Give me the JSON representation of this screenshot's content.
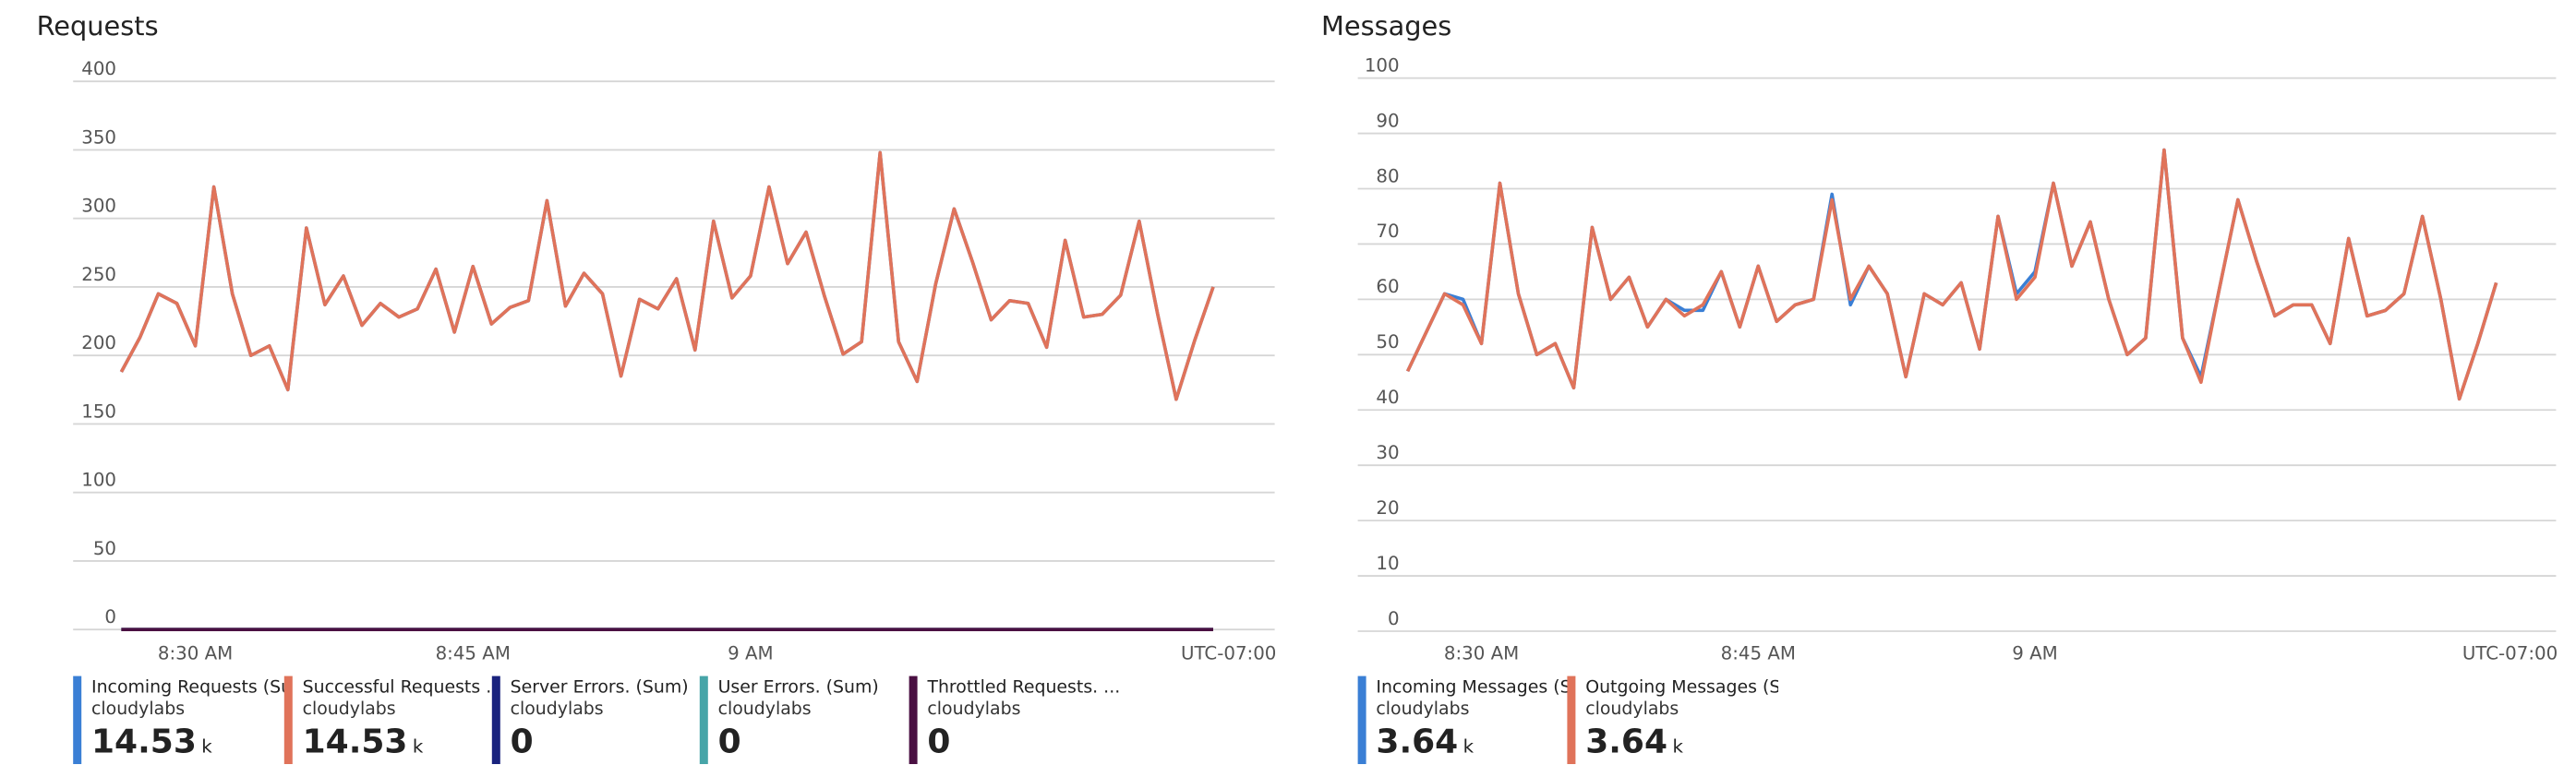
{
  "chart_data": [
    {
      "type": "line",
      "title": "Requests",
      "timezone": "UTC-07:00",
      "categories": [
        null,
        null,
        null,
        null,
        "8:30 AM",
        null,
        null,
        null,
        null,
        null,
        null,
        null,
        null,
        null,
        null,
        null,
        null,
        null,
        null,
        "8:45 AM",
        null,
        null,
        null,
        null,
        null,
        null,
        null,
        null,
        null,
        null,
        null,
        null,
        null,
        null,
        "9 AM",
        null,
        null,
        null,
        null,
        null,
        null,
        null,
        null,
        null,
        null,
        null,
        null,
        null,
        null,
        null,
        null,
        null,
        null,
        null,
        null,
        null,
        null,
        null,
        null,
        null
      ],
      "ylim": [
        0,
        400
      ],
      "yticks": [
        0,
        50,
        100,
        150,
        200,
        250,
        300,
        350,
        400
      ],
      "grid": true,
      "series": [
        {
          "name": "Incoming Requests (Sum)",
          "source": "cloudylabs",
          "total": "14.53",
          "total_unit": "k",
          "color": "#3a7fd5",
          "values": [
            188,
            213,
            245,
            238,
            207,
            323,
            245,
            200,
            207,
            175,
            293,
            237,
            258,
            222,
            238,
            228,
            234,
            263,
            217,
            265,
            223,
            235,
            240,
            313,
            236,
            260,
            245,
            185,
            241,
            234,
            256,
            204,
            298,
            242,
            258,
            323,
            267,
            290,
            243,
            201,
            210,
            348,
            210,
            181,
            252,
            307,
            268,
            226,
            240,
            238,
            206,
            284,
            228,
            230,
            244,
            298,
            230,
            168,
            211,
            250
          ]
        },
        {
          "name": "Successful Requests ...",
          "source": "cloudylabs",
          "total": "14.53",
          "total_unit": "k",
          "color": "#e0735a",
          "values": [
            188,
            213,
            245,
            238,
            207,
            323,
            245,
            200,
            207,
            175,
            293,
            237,
            258,
            222,
            238,
            228,
            234,
            263,
            217,
            265,
            223,
            235,
            240,
            313,
            236,
            260,
            245,
            185,
            241,
            234,
            256,
            204,
            298,
            242,
            258,
            323,
            267,
            290,
            243,
            201,
            210,
            348,
            210,
            181,
            252,
            307,
            268,
            226,
            240,
            238,
            206,
            284,
            228,
            230,
            244,
            298,
            230,
            168,
            211,
            250
          ]
        },
        {
          "name": "Server Errors. (Sum)",
          "source": "cloudylabs",
          "total": "0",
          "color": "#1a237e",
          "values": [
            0,
            0,
            0,
            0,
            0,
            0,
            0,
            0,
            0,
            0,
            0,
            0,
            0,
            0,
            0,
            0,
            0,
            0,
            0,
            0,
            0,
            0,
            0,
            0,
            0,
            0,
            0,
            0,
            0,
            0,
            0,
            0,
            0,
            0,
            0,
            0,
            0,
            0,
            0,
            0,
            0,
            0,
            0,
            0,
            0,
            0,
            0,
            0,
            0,
            0,
            0,
            0,
            0,
            0,
            0,
            0,
            0,
            0,
            0,
            0
          ]
        },
        {
          "name": "User Errors. (Sum)",
          "source": "cloudylabs",
          "total": "0",
          "color": "#47a5a8",
          "values": [
            0,
            0,
            0,
            0,
            0,
            0,
            0,
            0,
            0,
            0,
            0,
            0,
            0,
            0,
            0,
            0,
            0,
            0,
            0,
            0,
            0,
            0,
            0,
            0,
            0,
            0,
            0,
            0,
            0,
            0,
            0,
            0,
            0,
            0,
            0,
            0,
            0,
            0,
            0,
            0,
            0,
            0,
            0,
            0,
            0,
            0,
            0,
            0,
            0,
            0,
            0,
            0,
            0,
            0,
            0,
            0,
            0,
            0,
            0,
            0
          ]
        },
        {
          "name": "Throttled Requests. ...",
          "source": "cloudylabs",
          "total": "0",
          "color": "#4a1042",
          "values": [
            0,
            0,
            0,
            0,
            0,
            0,
            0,
            0,
            0,
            0,
            0,
            0,
            0,
            0,
            0,
            0,
            0,
            0,
            0,
            0,
            0,
            0,
            0,
            0,
            0,
            0,
            0,
            0,
            0,
            0,
            0,
            0,
            0,
            0,
            0,
            0,
            0,
            0,
            0,
            0,
            0,
            0,
            0,
            0,
            0,
            0,
            0,
            0,
            0,
            0,
            0,
            0,
            0,
            0,
            0,
            0,
            0,
            0,
            0,
            0
          ]
        }
      ]
    },
    {
      "type": "line",
      "title": "Messages",
      "timezone": "UTC-07:00",
      "categories": [
        null,
        null,
        null,
        null,
        "8:30 AM",
        null,
        null,
        null,
        null,
        null,
        null,
        null,
        null,
        null,
        null,
        null,
        null,
        null,
        null,
        "8:45 AM",
        null,
        null,
        null,
        null,
        null,
        null,
        null,
        null,
        null,
        null,
        null,
        null,
        null,
        null,
        "9 AM",
        null,
        null,
        null,
        null,
        null,
        null,
        null,
        null,
        null,
        null,
        null,
        null,
        null,
        null,
        null,
        null,
        null,
        null,
        null,
        null,
        null,
        null,
        null,
        null,
        null
      ],
      "ylim": [
        0,
        100
      ],
      "yticks": [
        0,
        10,
        20,
        30,
        40,
        50,
        60,
        70,
        80,
        90,
        100
      ],
      "grid": true,
      "series": [
        {
          "name": "Incoming Messages (Sum)",
          "source": "cloudylabs",
          "total": "3.64",
          "total_unit": "k",
          "color": "#3a7fd5",
          "values": [
            47,
            54,
            61,
            60,
            52,
            81,
            61,
            50,
            52,
            44,
            73,
            60,
            64,
            55,
            60,
            58,
            58,
            65,
            55,
            66,
            56,
            59,
            60,
            79,
            59,
            66,
            61,
            46,
            61,
            59,
            63,
            51,
            75,
            61,
            65,
            81,
            66,
            74,
            60,
            50,
            53,
            87,
            53,
            46,
            62,
            78,
            67,
            57,
            59,
            59,
            52,
            71,
            57,
            58,
            61,
            75,
            60,
            42,
            52,
            63
          ]
        },
        {
          "name": "Outgoing Messages (Sum)",
          "source": "cloudylabs",
          "total": "3.64",
          "total_unit": "k",
          "color": "#e0735a",
          "values": [
            47,
            54,
            61,
            59,
            52,
            81,
            61,
            50,
            52,
            44,
            73,
            60,
            64,
            55,
            60,
            57,
            59,
            65,
            55,
            66,
            56,
            59,
            60,
            78,
            60,
            66,
            61,
            46,
            61,
            59,
            63,
            51,
            75,
            60,
            64,
            81,
            66,
            74,
            60,
            50,
            53,
            87,
            53,
            45,
            62,
            78,
            67,
            57,
            59,
            59,
            52,
            71,
            57,
            58,
            61,
            75,
            60,
            42,
            52,
            63
          ]
        }
      ]
    }
  ]
}
